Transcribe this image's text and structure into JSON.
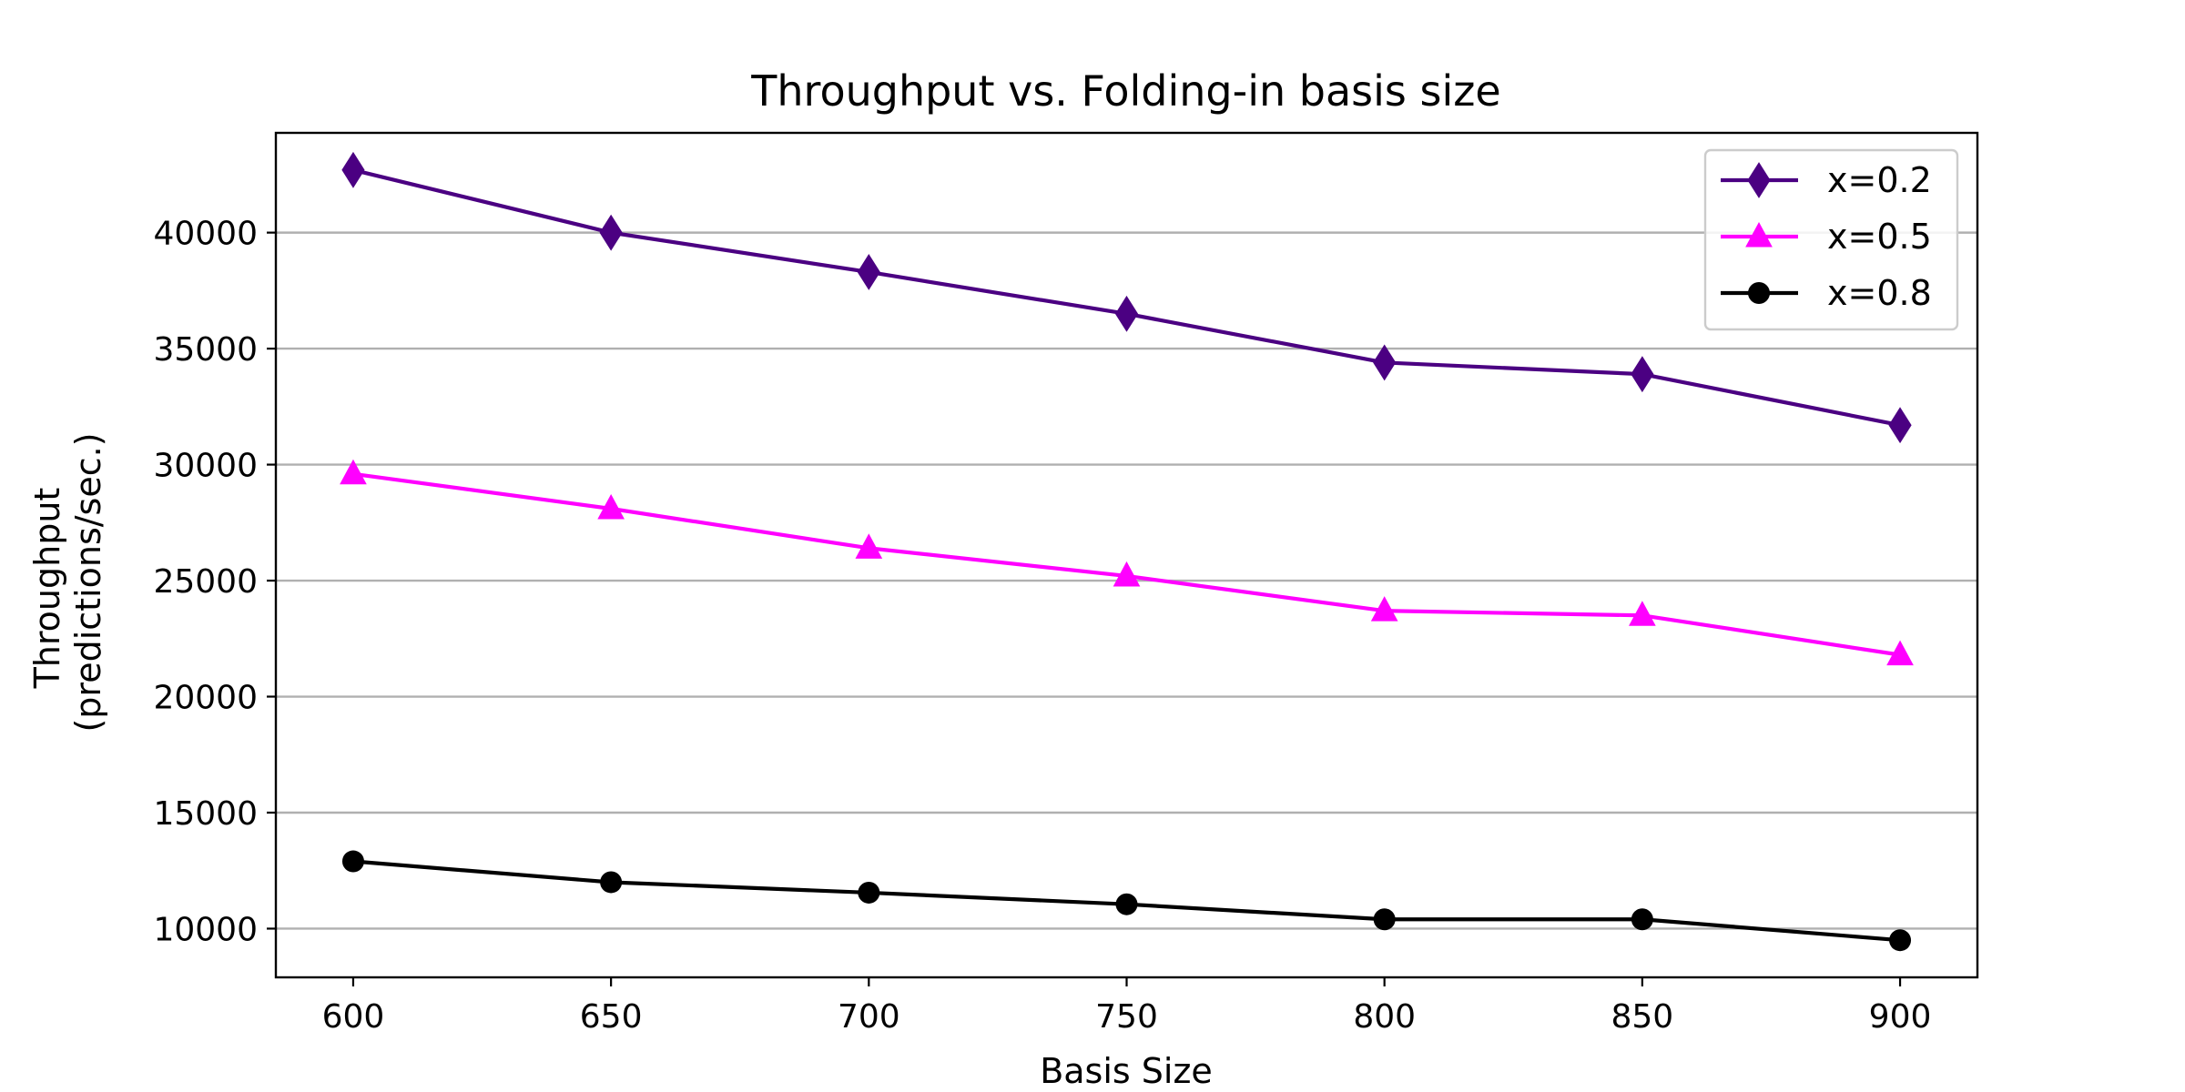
{
  "chart_data": {
    "type": "line",
    "title": "Throughput vs. Folding-in basis size",
    "xlabel": "Basis Size",
    "ylabel_lines": [
      "Throughput",
      "(predictions/sec.)"
    ],
    "x": [
      600,
      650,
      700,
      750,
      800,
      850,
      900
    ],
    "xlim": [
      585,
      915
    ],
    "ylim": [
      7900,
      44300
    ],
    "xticks": [
      600,
      650,
      700,
      750,
      800,
      850,
      900
    ],
    "yticks": [
      10000,
      15000,
      20000,
      25000,
      30000,
      35000,
      40000
    ],
    "grid": "horizontal",
    "legend_position": "top-right",
    "series": [
      {
        "name": "x=0.2",
        "color": "#4b0082",
        "marker": "diamond",
        "values": [
          42700,
          40000,
          38300,
          36500,
          34400,
          33900,
          31700
        ]
      },
      {
        "name": "x=0.5",
        "color": "#ff00ff",
        "marker": "triangle",
        "values": [
          29600,
          28100,
          26400,
          25200,
          23700,
          23500,
          21800
        ]
      },
      {
        "name": "x=0.8",
        "color": "#000000",
        "marker": "circle",
        "values": [
          12900,
          12000,
          11550,
          11050,
          10400,
          10400,
          9500
        ]
      }
    ]
  }
}
